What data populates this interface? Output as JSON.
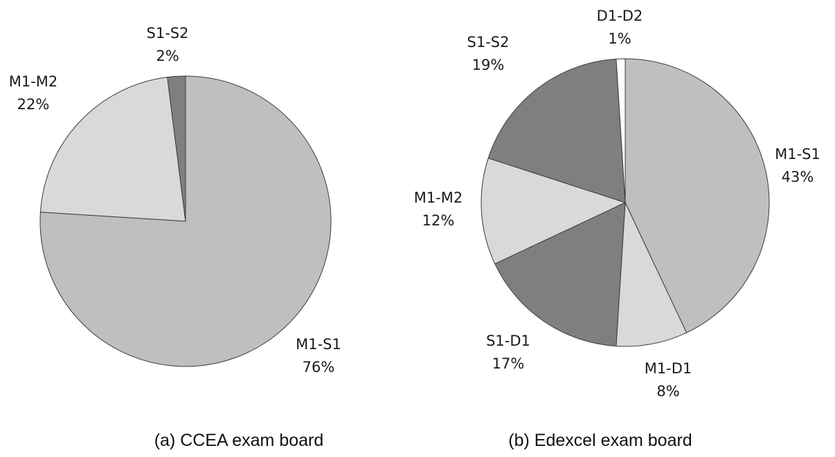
{
  "chart_data": [
    {
      "type": "pie",
      "title": "(a)  CCEA exam board",
      "start_angle_deg": 0,
      "direction": "clockwise",
      "slices": [
        {
          "label": "M1-S1",
          "pct_label": "76%",
          "value": 76,
          "color": "#bfbfbf"
        },
        {
          "label": "M1-M2",
          "pct_label": "22%",
          "value": 22,
          "color": "#d9d9d9"
        },
        {
          "label": "S1-S2",
          "pct_label": "2%",
          "value": 2,
          "color": "#7f7f7f"
        }
      ]
    },
    {
      "type": "pie",
      "title": "(b)  Edexcel exam board",
      "start_angle_deg": 0,
      "direction": "clockwise",
      "slices": [
        {
          "label": "M1-S1",
          "pct_label": "43%",
          "value": 43,
          "color": "#bfbfbf"
        },
        {
          "label": "M1-D1",
          "pct_label": "8%",
          "value": 8,
          "color": "#d9d9d9"
        },
        {
          "label": "S1-D1",
          "pct_label": "17%",
          "value": 17,
          "color": "#7f7f7f"
        },
        {
          "label": "M1-M2",
          "pct_label": "12%",
          "value": 12,
          "color": "#d9d9d9"
        },
        {
          "label": "S1-S2",
          "pct_label": "19%",
          "value": 19,
          "color": "#7f7f7f"
        },
        {
          "label": "D1-D2",
          "pct_label": "1%",
          "value": 1,
          "color": "#ffffff"
        }
      ]
    }
  ]
}
